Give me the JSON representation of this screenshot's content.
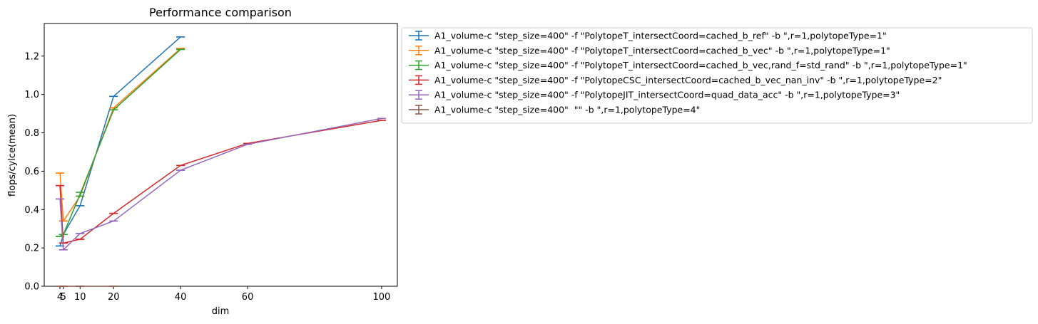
{
  "chart_data": {
    "type": "line",
    "title": "Performance comparison",
    "xlabel": "dim",
    "ylabel": "flops/cylce(mean)",
    "xlim": [
      -0.7,
      104.7
    ],
    "ylim": [
      0,
      1.37
    ],
    "xticks": [
      4,
      5,
      10,
      20,
      40,
      60,
      100
    ],
    "yticks": [
      0.0,
      0.2,
      0.4,
      0.6,
      0.8,
      1.0,
      1.2
    ],
    "ytick_labels": [
      "0.0",
      "0.2",
      "0.4",
      "0.6",
      "0.8",
      "1.0",
      "1.2"
    ],
    "grid": false,
    "legend_position": "outside-upper-right",
    "error_bars": true,
    "series": [
      {
        "name": "A1_volume-c \"step_size=400\" -f \"PolytopeT_intersectCoord=cached_b_ref\" -b \",r=1,polytopeType=1\"",
        "color": "#1f77b4",
        "x": [
          4,
          5,
          10,
          20,
          40
        ],
        "y": [
          0.21,
          0.27,
          0.42,
          0.99,
          1.3
        ],
        "err": [
          0,
          0,
          0,
          0,
          0
        ]
      },
      {
        "name": "A1_volume-c \"step_size=400\" -f \"PolytopeT_intersectCoord=cached_b_vec\" -b \",r=1,polytopeType=1\"",
        "color": "#ff7f0e",
        "x": [
          4,
          5,
          10,
          20,
          40
        ],
        "y": [
          0.59,
          0.34,
          0.47,
          0.93,
          1.24
        ],
        "err": [
          0,
          0,
          0,
          0,
          0
        ]
      },
      {
        "name": "A1_volume-c \"step_size=400\" -f \"PolytopeT_intersectCoord=cached_b_vec,rand_f=std_rand\" -b \",r=1,polytopeType=1\"",
        "color": "#2ca02c",
        "x": [
          4,
          5,
          10,
          20,
          40
        ],
        "y": [
          0.26,
          0.27,
          0.48,
          0.92,
          1.235
        ],
        "err": [
          0,
          0,
          0.01,
          0,
          0
        ]
      },
      {
        "name": "A1_volume-c \"step_size=400\" -f \"PolytopeCSC_intersectCoord=cached_b_vec_nan_inv\" -b \",r=1,polytopeType=2\"",
        "color": "#d62728",
        "x": [
          4,
          5,
          10,
          20,
          40,
          60,
          100
        ],
        "y": [
          0.525,
          0.225,
          0.245,
          0.38,
          0.63,
          0.745,
          0.865
        ],
        "err": [
          0,
          0,
          0,
          0,
          0,
          0,
          0
        ]
      },
      {
        "name": "A1_volume-c \"step_size=400\" -f \"PolytopeJIT_intersectCoord=quad_data_acc\" -b \",r=1,polytopeType=3\"",
        "color": "#9467bd",
        "x": [
          4,
          5,
          10,
          20,
          40,
          60,
          100
        ],
        "y": [
          0.455,
          0.19,
          0.275,
          0.34,
          0.605,
          0.74,
          0.875
        ],
        "err": [
          0,
          0,
          0,
          0,
          0,
          0,
          0
        ]
      },
      {
        "name": "A1_volume-c \"step_size=400\"  \"\" -b \",r=1,polytopeType=4\"",
        "color": "#8c564b",
        "x": [
          4,
          5,
          10,
          20
        ],
        "y": [
          0.0,
          0.0,
          0.0,
          0.0
        ],
        "err": [
          0,
          0,
          0,
          0
        ]
      }
    ]
  }
}
